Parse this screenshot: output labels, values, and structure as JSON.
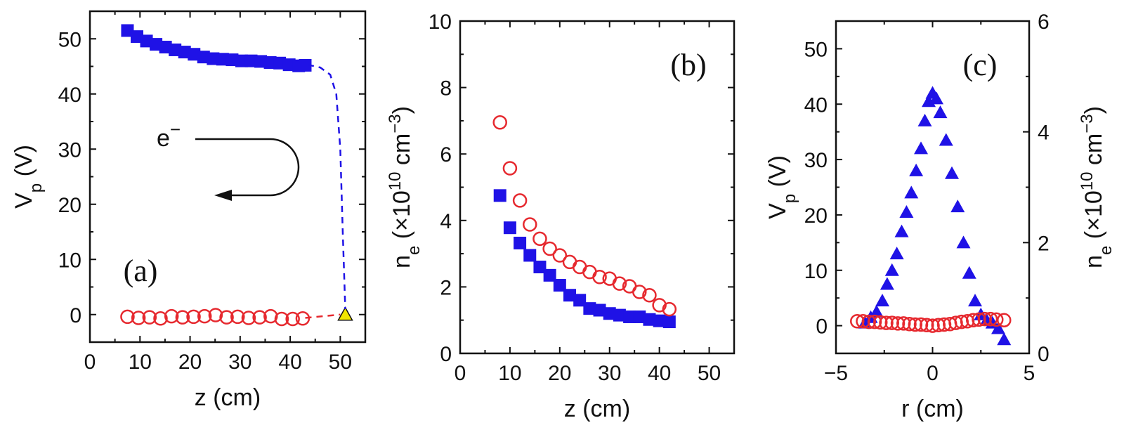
{
  "colors": {
    "blue": "#1f12e6",
    "red": "#e6292f",
    "yellow": "#f2e600",
    "axis": "#111111"
  },
  "chart_data": [
    {
      "panel": "(a)",
      "type": "scatter",
      "xlabel": "z (cm)",
      "ylabel": "V_p (V)",
      "xlim": [
        0,
        55
      ],
      "ylim": [
        -5,
        55
      ],
      "xticks": [
        0,
        10,
        20,
        30,
        40,
        50
      ],
      "yticks": [
        0,
        10,
        20,
        30,
        40,
        50
      ],
      "annotation": "e⁻",
      "series": [
        {
          "marker": "square-filled",
          "color": "#1f12e6",
          "x": [
            7.5,
            9.4,
            11.3,
            13.2,
            15.1,
            17.0,
            18.9,
            20.8,
            22.7,
            24.6,
            26.5,
            28.4,
            30.3,
            32.2,
            34.1,
            36.0,
            37.9,
            39.8,
            41.7,
            43.0
          ],
          "y": [
            51.5,
            50.4,
            49.6,
            49.0,
            48.5,
            48.0,
            47.6,
            47.2,
            46.7,
            46.4,
            46.3,
            46.2,
            46.0,
            46.0,
            45.9,
            45.7,
            45.6,
            45.3,
            45.1,
            45.2
          ]
        },
        {
          "marker": "circle-open",
          "color": "#e6292f",
          "x": [
            7.5,
            9.7,
            11.9,
            14.1,
            16.3,
            18.5,
            20.7,
            22.9,
            25.1,
            27.3,
            29.5,
            31.7,
            33.9,
            36.1,
            38.3,
            40.5,
            42.5
          ],
          "y": [
            -0.4,
            -0.6,
            -0.5,
            -0.7,
            -0.3,
            -0.5,
            -0.4,
            -0.3,
            -0.1,
            -0.5,
            -0.4,
            -0.6,
            -0.5,
            -0.3,
            -0.8,
            -0.8,
            -0.7
          ]
        },
        {
          "marker": "triangle-filled",
          "color": "#f2e600",
          "x": [
            51.0
          ],
          "y": [
            0.0
          ]
        },
        {
          "marker": "dashed-line",
          "color": "#1f12e6",
          "x": [
            43.5,
            46.0,
            48.0,
            49.2,
            50.0,
            50.5,
            51.0
          ],
          "y": [
            45.3,
            44.8,
            43.5,
            40.0,
            30.0,
            15.0,
            1.0
          ]
        },
        {
          "marker": "dashed-line",
          "color": "#e6292f",
          "x": [
            43.0,
            50.0
          ],
          "y": [
            -0.6,
            0.0
          ]
        }
      ]
    },
    {
      "panel": "(b)",
      "type": "scatter",
      "xlabel": "z (cm)",
      "ylabel": "n_e (×10^10 cm^-3)",
      "xlim": [
        0,
        55
      ],
      "ylim": [
        0,
        10
      ],
      "xticks": [
        0,
        10,
        20,
        30,
        40,
        50
      ],
      "yticks": [
        0,
        2,
        4,
        6,
        8,
        10
      ],
      "series": [
        {
          "marker": "square-filled",
          "color": "#1f12e6",
          "x": [
            8.0,
            10.0,
            12.0,
            14.0,
            16.0,
            18.0,
            20.0,
            22.0,
            24.0,
            26.0,
            28.0,
            30.0,
            32.0,
            34.0,
            36.0,
            38.0,
            40.0,
            42.0
          ],
          "y": [
            4.75,
            3.78,
            3.32,
            2.95,
            2.6,
            2.35,
            2.05,
            1.75,
            1.6,
            1.35,
            1.3,
            1.2,
            1.15,
            1.1,
            1.1,
            1.02,
            0.98,
            0.95
          ]
        },
        {
          "marker": "circle-open",
          "color": "#e6292f",
          "x": [
            8.0,
            10.0,
            12.0,
            14.0,
            16.0,
            18.0,
            20.0,
            22.0,
            24.0,
            26.0,
            28.0,
            30.0,
            32.0,
            34.0,
            36.0,
            38.0,
            40.0,
            42.0
          ],
          "y": [
            6.95,
            5.57,
            4.6,
            3.88,
            3.45,
            3.15,
            2.95,
            2.75,
            2.6,
            2.45,
            2.3,
            2.25,
            2.1,
            2.02,
            1.85,
            1.75,
            1.45,
            1.33
          ]
        }
      ]
    },
    {
      "panel": "(c)",
      "type": "scatter",
      "xlabel": "r (cm)",
      "ylabel": "V_p (V)",
      "ylabel_right": "n_e (×10^10 cm^-3)",
      "xlim": [
        -5,
        5
      ],
      "ylim": [
        -5,
        55
      ],
      "ylim_right": [
        0,
        6
      ],
      "xticks": [
        -5,
        0,
        5
      ],
      "yticks": [
        0,
        10,
        20,
        30,
        40,
        50
      ],
      "yticks_right": [
        0,
        2,
        4,
        6
      ],
      "series": [
        {
          "marker": "triangle-filled",
          "color": "#1f12e6",
          "axis": "left",
          "x": [
            -3.5,
            -3.2,
            -2.9,
            -2.6,
            -2.35,
            -2.1,
            -1.85,
            -1.6,
            -1.35,
            -1.1,
            -0.85,
            -0.6,
            -0.4,
            -0.2,
            0.0,
            0.2,
            0.4,
            0.7,
            1.0,
            1.3,
            1.6,
            1.9,
            2.2,
            2.5,
            2.8,
            3.1,
            3.4,
            3.7
          ],
          "y": [
            0.5,
            1.5,
            2.5,
            4.5,
            7.5,
            10.0,
            13.0,
            17.0,
            20.5,
            24.0,
            28.0,
            32.0,
            37.0,
            40.5,
            42.0,
            41.0,
            38.5,
            33.5,
            27.5,
            21.5,
            15.0,
            9.5,
            4.5,
            2.0,
            1.0,
            0.5,
            -0.5,
            -2.5
          ]
        },
        {
          "marker": "circle-open",
          "color": "#e6292f",
          "axis": "right",
          "x": [
            -3.9,
            -3.6,
            -3.3,
            -3.0,
            -2.7,
            -2.4,
            -2.1,
            -1.8,
            -1.5,
            -1.2,
            -0.9,
            -0.6,
            -0.3,
            0.0,
            0.3,
            0.6,
            0.9,
            1.2,
            1.5,
            1.8,
            2.1,
            2.4,
            2.7,
            3.0,
            3.3,
            3.7
          ],
          "y": [
            0.58,
            0.58,
            0.57,
            0.57,
            0.56,
            0.55,
            0.55,
            0.54,
            0.54,
            0.53,
            0.52,
            0.52,
            0.51,
            0.5,
            0.51,
            0.52,
            0.53,
            0.55,
            0.57,
            0.58,
            0.6,
            0.61,
            0.62,
            0.62,
            0.61,
            0.6
          ]
        }
      ]
    }
  ]
}
